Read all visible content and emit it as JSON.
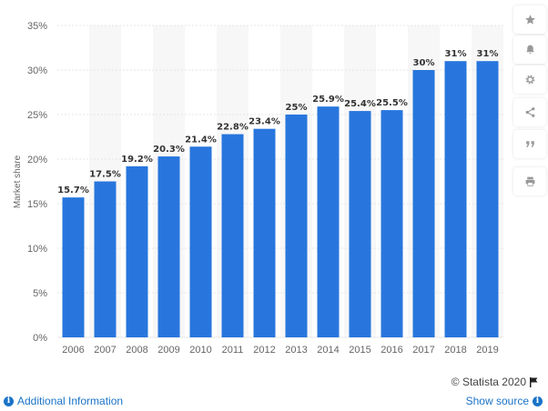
{
  "chart_data": {
    "type": "bar",
    "categories": [
      "2006",
      "2007",
      "2008",
      "2009",
      "2010",
      "2011",
      "2012",
      "2013",
      "2014",
      "2015",
      "2016",
      "2017",
      "2018",
      "2019"
    ],
    "values": [
      15.7,
      17.5,
      19.2,
      20.3,
      21.4,
      22.8,
      23.4,
      25,
      25.9,
      25.4,
      25.5,
      30,
      31,
      31
    ],
    "data_labels": [
      "15.7%",
      "17.5%",
      "19.2%",
      "20.3%",
      "21.4%",
      "22.8%",
      "23.4%",
      "25%",
      "25.9%",
      "25.4%",
      "25.5%",
      "30%",
      "31%",
      "31%"
    ],
    "ylabel": "Market share",
    "xlabel": "",
    "ylim": [
      0,
      35
    ],
    "yticks": [
      0,
      5,
      10,
      15,
      20,
      25,
      30,
      35
    ],
    "ytick_labels": [
      "0%",
      "5%",
      "10%",
      "15%",
      "20%",
      "25%",
      "30%",
      "35%"
    ],
    "grid": true,
    "bar_color": "#2876dd",
    "alt_band_color": "#f7f7f7"
  },
  "toolbar": {
    "icons": [
      "star-icon",
      "bell-icon",
      "gear-icon",
      "share-icon",
      "quote-icon",
      "print-icon"
    ]
  },
  "footer": {
    "credit": "© Statista 2020",
    "additional_info": "Additional Information",
    "show_source": "Show source"
  },
  "colors": {
    "link": "#1a73c8",
    "grid": "#e6e6e6"
  }
}
